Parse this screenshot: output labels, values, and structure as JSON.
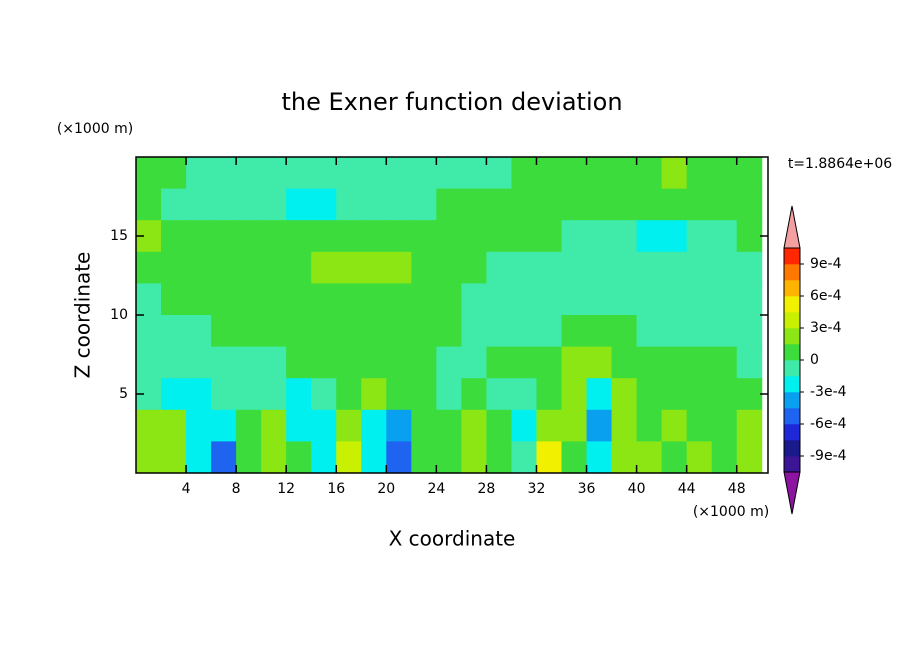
{
  "chart_data": {
    "type": "contour",
    "title": "the Exner function deviation",
    "xlabel": "X coordinate",
    "ylabel": "Z coordinate",
    "x_unit": "(×1000 m)",
    "y_unit": "(×1000 m)",
    "annotation": "t=1.8864e+06",
    "xlim": [
      0,
      50.5
    ],
    "ylim": [
      0,
      20
    ],
    "xticks": [
      4,
      8,
      12,
      16,
      20,
      24,
      28,
      32,
      36,
      40,
      44,
      48
    ],
    "yticks": [
      5,
      10,
      15
    ],
    "x": [
      1,
      3,
      5,
      7,
      9,
      11,
      13,
      15,
      17,
      19,
      21,
      23,
      25,
      27,
      29,
      31,
      33,
      35,
      37,
      39,
      41,
      43,
      45,
      47,
      49
    ],
    "z": [
      19,
      17,
      15,
      13,
      11,
      9,
      7,
      5,
      3,
      1
    ],
    "values": [
      [
        7e-05,
        7e-05,
        -7e-05,
        -7e-05,
        -7e-05,
        -7e-05,
        -7e-05,
        -7e-05,
        -7e-05,
        -7e-05,
        -7e-05,
        -7e-05,
        -7e-05,
        -7e-05,
        -7e-05,
        7e-05,
        7e-05,
        7e-05,
        7e-05,
        7e-05,
        7e-05,
        0.0002,
        7e-05,
        7e-05,
        7e-05
      ],
      [
        7e-05,
        -7e-05,
        -7e-05,
        -7e-05,
        -7e-05,
        -7e-05,
        -0.0002,
        -0.0002,
        -7e-05,
        -7e-05,
        -7e-05,
        -7e-05,
        7e-05,
        7e-05,
        7e-05,
        7e-05,
        7e-05,
        7e-05,
        7e-05,
        7e-05,
        7e-05,
        7e-05,
        7e-05,
        7e-05,
        7e-05
      ],
      [
        0.0002,
        7e-05,
        7e-05,
        7e-05,
        7e-05,
        7e-05,
        7e-05,
        7e-05,
        7e-05,
        7e-05,
        7e-05,
        7e-05,
        7e-05,
        7e-05,
        7e-05,
        7e-05,
        7e-05,
        -7e-05,
        -7e-05,
        -7e-05,
        -0.0002,
        -0.0002,
        -7e-05,
        -7e-05,
        7e-05
      ],
      [
        7e-05,
        7e-05,
        7e-05,
        7e-05,
        7e-05,
        7e-05,
        7e-05,
        0.0002,
        0.0002,
        0.0002,
        0.0002,
        7e-05,
        7e-05,
        7e-05,
        -7e-05,
        -7e-05,
        -7e-05,
        -7e-05,
        -7e-05,
        -7e-05,
        -7e-05,
        -7e-05,
        -7e-05,
        -7e-05,
        -7e-05
      ],
      [
        -7e-05,
        7e-05,
        7e-05,
        7e-05,
        7e-05,
        7e-05,
        7e-05,
        7e-05,
        7e-05,
        7e-05,
        7e-05,
        7e-05,
        7e-05,
        -7e-05,
        -7e-05,
        -7e-05,
        -7e-05,
        -7e-05,
        -7e-05,
        -7e-05,
        -7e-05,
        -7e-05,
        -7e-05,
        -7e-05,
        -7e-05
      ],
      [
        -7e-05,
        -7e-05,
        -7e-05,
        7e-05,
        7e-05,
        7e-05,
        7e-05,
        7e-05,
        7e-05,
        7e-05,
        7e-05,
        7e-05,
        7e-05,
        -7e-05,
        -7e-05,
        -7e-05,
        -7e-05,
        7e-05,
        7e-05,
        7e-05,
        -7e-05,
        -7e-05,
        -7e-05,
        -7e-05,
        -7e-05
      ],
      [
        -7e-05,
        -7e-05,
        -7e-05,
        -7e-05,
        -7e-05,
        -7e-05,
        7e-05,
        7e-05,
        7e-05,
        7e-05,
        7e-05,
        7e-05,
        -7e-05,
        -7e-05,
        7e-05,
        7e-05,
        7e-05,
        0.0002,
        0.0002,
        7e-05,
        7e-05,
        7e-05,
        7e-05,
        7e-05,
        -7e-05
      ],
      [
        -7e-05,
        -0.0002,
        -0.0002,
        -7e-05,
        -7e-05,
        -7e-05,
        -0.0002,
        -7e-05,
        7e-05,
        0.0002,
        7e-05,
        7e-05,
        -7e-05,
        7e-05,
        -7e-05,
        -7e-05,
        7e-05,
        0.0002,
        -0.0002,
        0.0002,
        7e-05,
        7e-05,
        7e-05,
        7e-05,
        7e-05
      ],
      [
        0.0002,
        0.0002,
        -0.0002,
        -0.0002,
        7e-05,
        0.0002,
        -0.0002,
        -0.0002,
        0.0002,
        -0.0002,
        -0.00035,
        7e-05,
        7e-05,
        0.0002,
        7e-05,
        -0.0002,
        0.0002,
        0.0002,
        -0.00035,
        0.0002,
        7e-05,
        0.0002,
        7e-05,
        7e-05,
        0.0002
      ],
      [
        0.0002,
        0.0002,
        -0.0002,
        -0.0005,
        7e-05,
        0.0002,
        7e-05,
        -0.0002,
        0.00035,
        -0.0002,
        -0.0005,
        7e-05,
        7e-05,
        0.0002,
        7e-05,
        -7e-05,
        0.0005,
        7e-05,
        -0.0002,
        0.0002,
        0.0002,
        7e-05,
        0.0002,
        7e-05,
        0.0002
      ]
    ],
    "colorbar": {
      "levels": [
        -0.00105,
        -0.0009,
        -0.00075,
        -0.0006,
        -0.00045,
        -0.0003,
        -0.00015,
        0,
        0.00015,
        0.0003,
        0.00045,
        0.0006,
        0.00075,
        0.0009,
        0.00105
      ],
      "colors": [
        "#3c1496",
        "#1a1a8c",
        "#1e28d8",
        "#1e64f0",
        "#0aa0f0",
        "#00f0f0",
        "#40eaa8",
        "#3cdc3c",
        "#8ce614",
        "#c8f000",
        "#f0f000",
        "#ffb400",
        "#ff7800",
        "#ff2800"
      ],
      "over_color": "#f5a0a0",
      "under_color": "#8c14a0",
      "ticks": [
        {
          "value": 0.0009,
          "label": "9e-4"
        },
        {
          "value": 0.0006,
          "label": "6e-4"
        },
        {
          "value": 0.0003,
          "label": "3e-4"
        },
        0,
        {
          "value": -0.0003,
          "label": "-3e-4"
        },
        {
          "value": -0.0006,
          "label": "-6e-4"
        },
        {
          "value": -0.0009,
          "label": "-9e-4"
        }
      ]
    }
  }
}
